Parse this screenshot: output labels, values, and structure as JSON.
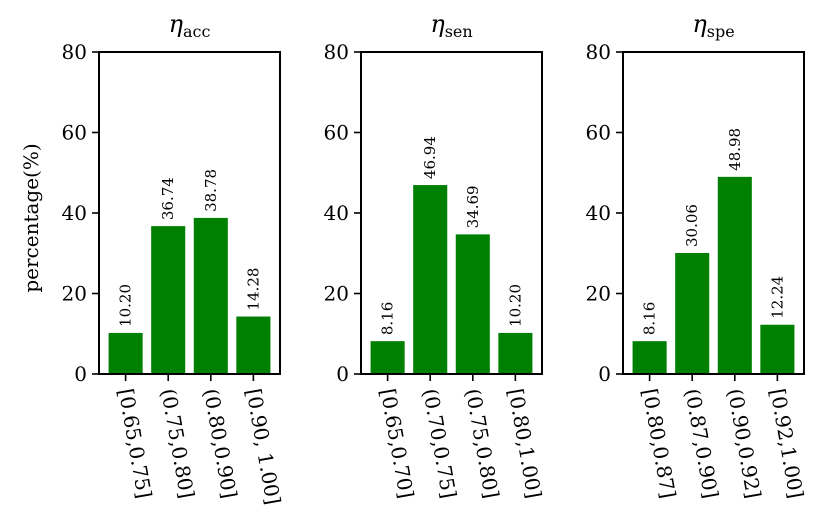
{
  "chart_data": [
    {
      "type": "bar",
      "title": {
        "symbol": "η",
        "subscript": "acc"
      },
      "ylabel": "percentage(%)",
      "ylim": [
        0,
        80
      ],
      "yticks": [
        0,
        20,
        40,
        60,
        80
      ],
      "categories": [
        "[0.65,0.75]",
        "(0.75,0.80]",
        "(0.80,0.90]",
        "[0.90, 1.00]"
      ],
      "values": [
        10.2,
        36.74,
        38.78,
        14.28
      ],
      "labels": [
        "10.20",
        "36.74",
        "38.78",
        "14.28"
      ],
      "color": "#008000"
    },
    {
      "type": "bar",
      "title": {
        "symbol": "η",
        "subscript": "sen"
      },
      "ylabel": "",
      "ylim": [
        0,
        80
      ],
      "yticks": [
        0,
        20,
        40,
        60,
        80
      ],
      "categories": [
        "[0.65,0.70]",
        "(0.70,0.75]",
        "(0.75,0.80]",
        "[0.80,1.00]"
      ],
      "values": [
        8.16,
        46.94,
        34.69,
        10.2
      ],
      "labels": [
        "8.16",
        "46.94",
        "34.69",
        "10.20"
      ],
      "color": "#008000"
    },
    {
      "type": "bar",
      "title": {
        "symbol": "η",
        "subscript": "spe"
      },
      "ylabel": "",
      "ylim": [
        0,
        80
      ],
      "yticks": [
        0,
        20,
        40,
        60,
        80
      ],
      "categories": [
        "[0.80,0.87]",
        "(0.87,0.90]",
        "(0.90,0.92]",
        "[0.92,1.00]"
      ],
      "values": [
        8.16,
        30.06,
        48.98,
        12.24
      ],
      "labels": [
        "8.16",
        "30.06",
        "48.98",
        "12.24"
      ],
      "color": "#008000"
    }
  ]
}
